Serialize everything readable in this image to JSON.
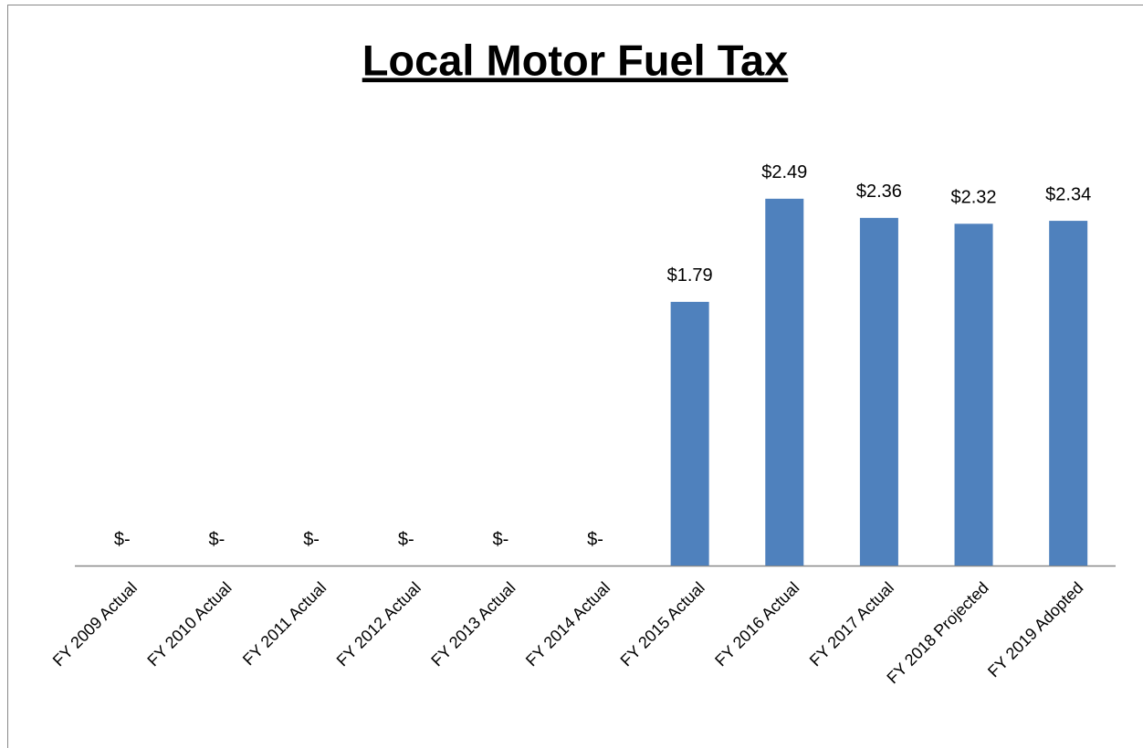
{
  "chart_data": {
    "type": "bar",
    "title": "Local Motor Fuel Tax",
    "categories": [
      "FY 2009 Actual",
      "FY 2010 Actual",
      "FY 2011 Actual",
      "FY 2012 Actual",
      "FY 2013 Actual",
      "FY 2014 Actual",
      "FY 2015 Actual",
      "FY 2016 Actual",
      "FY 2017 Actual",
      "FY 2018 Projected",
      "FY 2019 Adopted"
    ],
    "values": [
      0,
      0,
      0,
      0,
      0,
      0,
      1.79,
      2.49,
      2.36,
      2.32,
      2.34
    ],
    "value_labels": [
      "$-",
      "$-",
      "$-",
      "$-",
      "$-",
      "$-",
      "$1.79",
      "$2.49",
      "$2.36",
      "$2.32",
      "$2.34"
    ],
    "color": "#4f81bd"
  }
}
